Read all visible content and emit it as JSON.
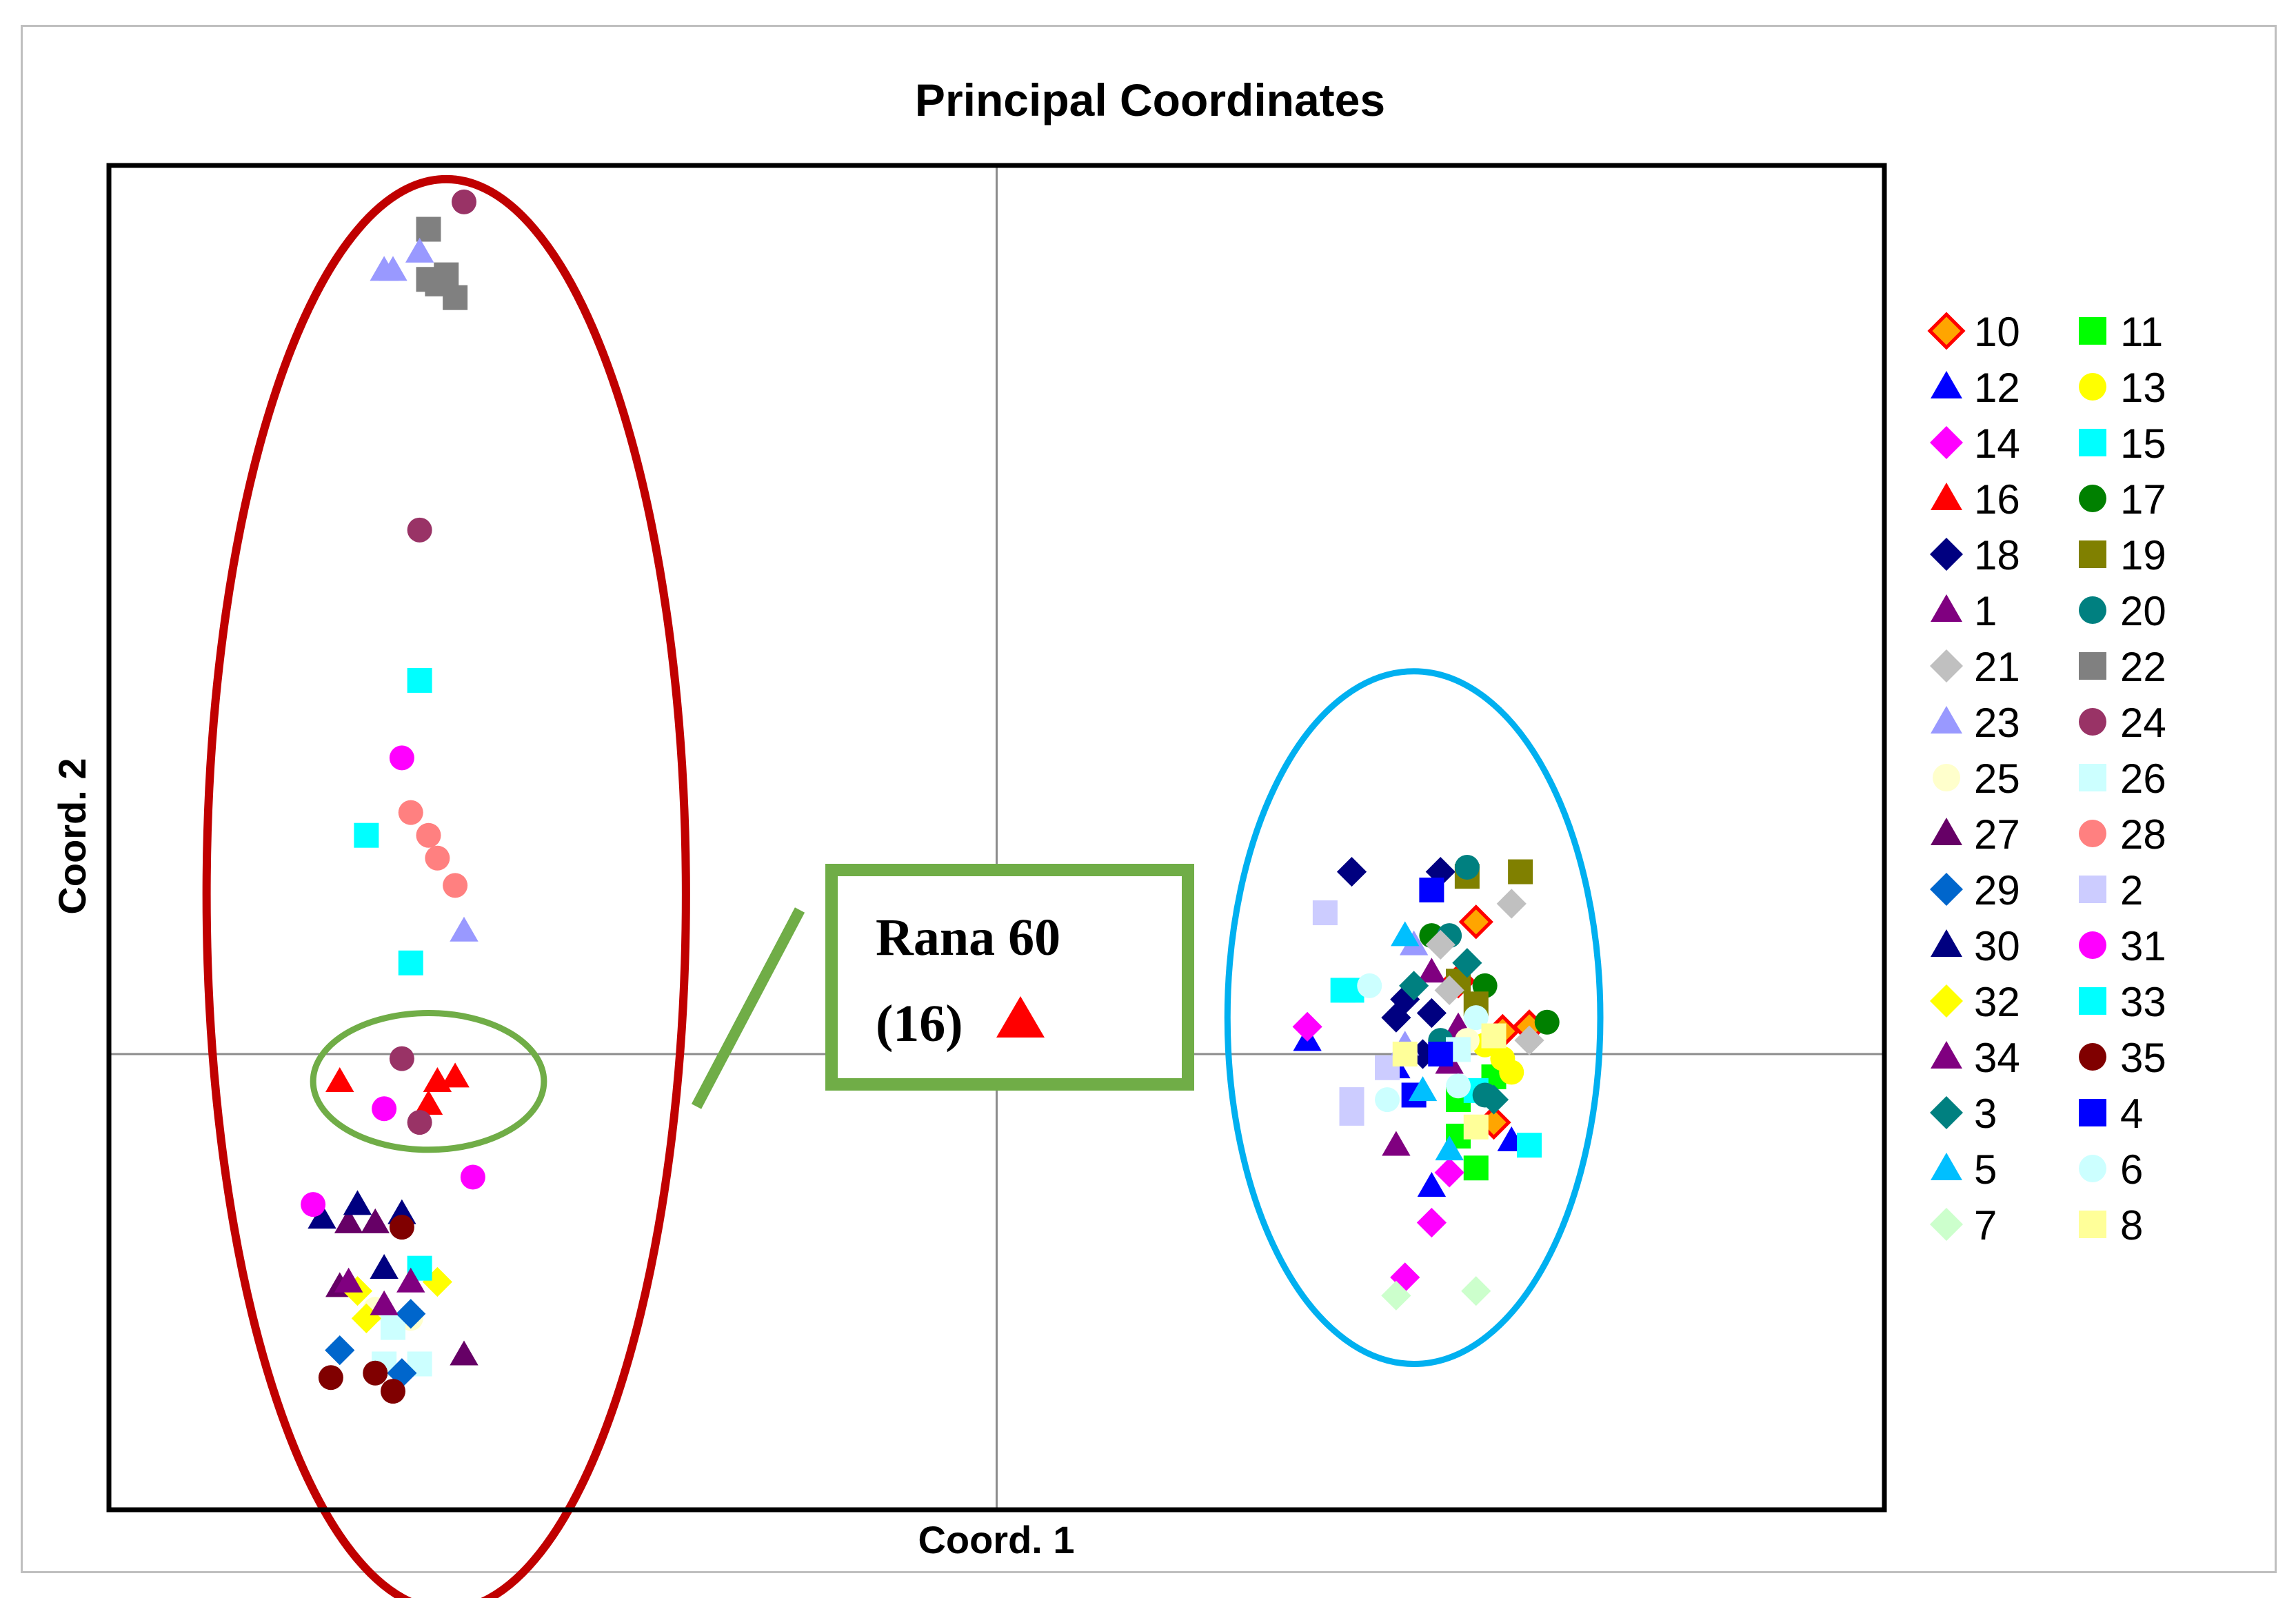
{
  "chart_data": {
    "type": "scatter",
    "title": "Principal Coordinates",
    "xlabel": "Coord. 1",
    "ylabel": "Coord. 2",
    "xlim": [
      -1,
      1
    ],
    "ylim": [
      -1,
      1.95
    ],
    "grid": false,
    "legend_position": "right",
    "series": [
      {
        "name": "10",
        "marker": "diamond",
        "color": "#FFA500",
        "stroke": "#FF0000",
        "points": [
          [
            0.54,
            0.29
          ],
          [
            0.6,
            0.06
          ],
          [
            0.56,
            -0.15
          ],
          [
            0.52,
            0.16
          ],
          [
            0.57,
            0.05
          ]
        ]
      },
      {
        "name": "11",
        "marker": "square",
        "color": "#00FF00",
        "points": [
          [
            0.54,
            -0.25
          ],
          [
            0.52,
            -0.1
          ],
          [
            0.56,
            -0.05
          ],
          [
            0.52,
            -0.18
          ]
        ]
      },
      {
        "name": "12",
        "marker": "triangle",
        "color": "#0000FF",
        "points": [
          [
            0.49,
            -0.29
          ],
          [
            0.35,
            0.03
          ],
          [
            0.58,
            -0.19
          ],
          [
            0.45,
            -0.03
          ]
        ]
      },
      {
        "name": "13",
        "marker": "circle",
        "color": "#FFFF00",
        "points": [
          [
            0.58,
            -0.04
          ],
          [
            0.57,
            -0.01
          ],
          [
            0.55,
            0.02
          ]
        ]
      },
      {
        "name": "14",
        "marker": "diamond",
        "color": "#FF00FF",
        "points": [
          [
            0.35,
            0.06
          ],
          [
            0.51,
            -0.26
          ],
          [
            0.49,
            -0.37
          ],
          [
            0.46,
            -0.49
          ]
        ]
      },
      {
        "name": "15",
        "marker": "square",
        "color": "#00FFFF",
        "points": [
          [
            0.6,
            -0.2
          ],
          [
            0.54,
            -0.08
          ],
          [
            0.4,
            0.14
          ]
        ]
      },
      {
        "name": "16",
        "marker": "triangle",
        "color": "#FF0000",
        "points": [
          [
            -0.74,
            -0.06
          ],
          [
            -0.61,
            -0.05
          ],
          [
            -0.64,
            -0.11
          ],
          [
            -0.63,
            -0.06
          ]
        ]
      },
      {
        "name": "17",
        "marker": "circle",
        "color": "#008000",
        "points": [
          [
            0.62,
            0.07
          ],
          [
            0.55,
            0.15
          ],
          [
            0.49,
            0.26
          ]
        ]
      },
      {
        "name": "18",
        "marker": "diamond",
        "color": "#000080",
        "points": [
          [
            0.4,
            0.4
          ],
          [
            0.5,
            0.4
          ],
          [
            0.46,
            0.12
          ],
          [
            0.45,
            0.08
          ],
          [
            0.48,
            0.0
          ],
          [
            0.49,
            0.09
          ]
        ]
      },
      {
        "name": "19",
        "marker": "square",
        "color": "#808000",
        "points": [
          [
            0.59,
            0.4
          ],
          [
            0.53,
            0.39
          ],
          [
            0.52,
            0.16
          ],
          [
            0.54,
            0.11
          ]
        ]
      },
      {
        "name": "1",
        "marker": "triangle",
        "color": "#800080",
        "points": [
          [
            0.49,
            0.18
          ],
          [
            0.52,
            0.06
          ],
          [
            0.45,
            -0.2
          ],
          [
            0.51,
            -0.02
          ]
        ]
      },
      {
        "name": "20",
        "marker": "circle",
        "color": "#008080",
        "points": [
          [
            0.53,
            0.41
          ],
          [
            0.5,
            0.03
          ],
          [
            0.55,
            -0.09
          ],
          [
            0.51,
            0.26
          ]
        ]
      },
      {
        "name": "21",
        "marker": "diamond",
        "color": "#C0C0C0",
        "points": [
          [
            0.58,
            0.33
          ],
          [
            0.6,
            0.03
          ],
          [
            0.5,
            0.24
          ],
          [
            0.51,
            0.14
          ]
        ]
      },
      {
        "name": "22",
        "marker": "square",
        "color": "#808080",
        "points": [
          [
            -0.64,
            1.81
          ],
          [
            -0.63,
            1.69
          ],
          [
            -0.61,
            1.66
          ],
          [
            -0.64,
            1.7
          ],
          [
            -0.62,
            1.71
          ]
        ]
      },
      {
        "name": "23",
        "marker": "triangle",
        "color": "#9999FF",
        "points": [
          [
            -0.65,
            1.76
          ],
          [
            -0.69,
            1.72
          ],
          [
            -0.68,
            1.72
          ],
          [
            -0.6,
            0.27
          ],
          [
            0.47,
            0.24
          ],
          [
            0.46,
            0.02
          ]
        ]
      },
      {
        "name": "24",
        "marker": "circle",
        "color": "#993366",
        "points": [
          [
            -0.6,
            1.87
          ],
          [
            -0.65,
            1.15
          ],
          [
            -0.67,
            -0.01
          ],
          [
            -0.65,
            -0.15
          ]
        ]
      },
      {
        "name": "25",
        "marker": "circle",
        "color": "#FFFFCC",
        "points": [
          [
            -0.7,
            -0.56
          ],
          [
            -0.66,
            -0.58
          ],
          [
            0.53,
            0.03
          ]
        ]
      },
      {
        "name": "26",
        "marker": "square",
        "color": "#CCFFFF",
        "points": [
          [
            -0.69,
            -0.68
          ],
          [
            -0.65,
            -0.68
          ],
          [
            -0.68,
            -0.6
          ],
          [
            0.52,
            0.01
          ]
        ]
      },
      {
        "name": "27",
        "marker": "triangle",
        "color": "#660066",
        "points": [
          [
            -0.73,
            -0.37
          ],
          [
            -0.7,
            -0.37
          ],
          [
            -0.74,
            -0.51
          ],
          [
            -0.6,
            -0.66
          ]
        ]
      },
      {
        "name": "28",
        "marker": "circle",
        "color": "#FF8080",
        "points": [
          [
            -0.66,
            0.53
          ],
          [
            -0.64,
            0.48
          ],
          [
            -0.63,
            0.43
          ],
          [
            -0.61,
            0.37
          ]
        ]
      },
      {
        "name": "29",
        "marker": "diamond",
        "color": "#0066CC",
        "points": [
          [
            -0.74,
            -0.65
          ],
          [
            -0.66,
            -0.57
          ],
          [
            -0.67,
            -0.7
          ]
        ]
      },
      {
        "name": "2",
        "marker": "square",
        "color": "#CCCCFF",
        "points": [
          [
            0.37,
            0.31
          ],
          [
            0.4,
            -0.1
          ],
          [
            0.4,
            -0.13
          ],
          [
            0.44,
            -0.03
          ]
        ]
      },
      {
        "name": "30",
        "marker": "triangle",
        "color": "#000080",
        "points": [
          [
            -0.76,
            -0.36
          ],
          [
            -0.72,
            -0.33
          ],
          [
            -0.67,
            -0.35
          ],
          [
            -0.69,
            -0.47
          ]
        ]
      },
      {
        "name": "31",
        "marker": "circle",
        "color": "#FF00FF",
        "points": [
          [
            -0.67,
            0.65
          ],
          [
            -0.69,
            -0.12
          ],
          [
            -0.59,
            -0.27
          ],
          [
            -0.77,
            -0.33
          ]
        ]
      },
      {
        "name": "32",
        "marker": "diamond",
        "color": "#FFFF00",
        "points": [
          [
            -0.72,
            -0.52
          ],
          [
            -0.63,
            -0.5
          ],
          [
            -0.71,
            -0.58
          ]
        ]
      },
      {
        "name": "33",
        "marker": "square",
        "color": "#00FFFF",
        "points": [
          [
            -0.65,
            0.82
          ],
          [
            -0.71,
            0.48
          ],
          [
            -0.66,
            0.2
          ],
          [
            -0.65,
            -0.47
          ],
          [
            0.39,
            0.14
          ]
        ]
      },
      {
        "name": "34",
        "marker": "triangle",
        "color": "#800080",
        "points": [
          [
            -0.73,
            -0.5
          ],
          [
            -0.66,
            -0.5
          ],
          [
            -0.69,
            -0.55
          ]
        ]
      },
      {
        "name": "35",
        "marker": "circle",
        "color": "#800000",
        "points": [
          [
            -0.67,
            -0.38
          ],
          [
            -0.75,
            -0.71
          ],
          [
            -0.7,
            -0.7
          ],
          [
            -0.68,
            -0.74
          ]
        ]
      },
      {
        "name": "3",
        "marker": "diamond",
        "color": "#008080",
        "points": [
          [
            0.47,
            0.15
          ],
          [
            0.53,
            0.2
          ],
          [
            0.56,
            -0.1
          ]
        ]
      },
      {
        "name": "4",
        "marker": "square",
        "color": "#0000FF",
        "points": [
          [
            0.49,
            0.36
          ],
          [
            0.47,
            -0.09
          ],
          [
            0.5,
            0.0
          ]
        ]
      },
      {
        "name": "5",
        "marker": "triangle",
        "color": "#00BFFF",
        "points": [
          [
            0.46,
            0.26
          ],
          [
            0.51,
            -0.21
          ],
          [
            0.48,
            -0.08
          ]
        ]
      },
      {
        "name": "6",
        "marker": "circle",
        "color": "#CCFFFF",
        "points": [
          [
            0.42,
            0.15
          ],
          [
            0.52,
            -0.07
          ],
          [
            0.54,
            0.08
          ],
          [
            0.44,
            -0.1
          ]
        ]
      },
      {
        "name": "7",
        "marker": "diamond",
        "color": "#CCFFCC",
        "points": [
          [
            0.45,
            -0.53
          ],
          [
            0.54,
            -0.52
          ]
        ]
      },
      {
        "name": "8",
        "marker": "square",
        "color": "#FFFF99",
        "points": [
          [
            0.46,
            0.0
          ],
          [
            0.54,
            -0.16
          ],
          [
            0.56,
            0.04
          ]
        ]
      }
    ],
    "annotations": [
      {
        "shape": "ellipse",
        "color": "#C00000",
        "cx": -0.62,
        "cy": 0.35,
        "rx": 0.27,
        "ry": 1.57
      },
      {
        "shape": "ellipse",
        "color": "#00B0F0",
        "cx": 0.47,
        "cy": 0.08,
        "rx": 0.21,
        "ry": 0.76
      },
      {
        "shape": "ellipse",
        "color": "#70AD47",
        "cx": -0.64,
        "cy": -0.06,
        "rx": 0.13,
        "ry": 0.15
      }
    ],
    "callout": {
      "line1": "Rana 60",
      "line2": "(16)",
      "marker": "triangle",
      "marker_color": "#FF0000",
      "border_color": "#70AD47"
    }
  }
}
